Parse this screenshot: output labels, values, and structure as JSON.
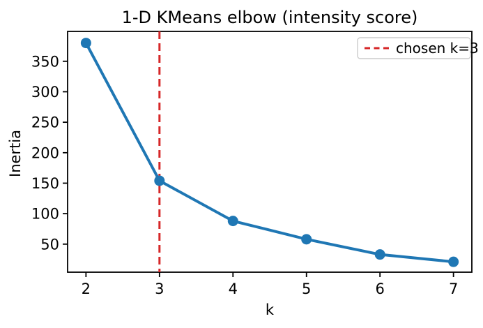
{
  "chart_data": {
    "type": "line",
    "title": "1-D KMeans elbow (intensity score)",
    "xlabel": "k",
    "ylabel": "Inertia",
    "x": [
      2,
      3,
      4,
      5,
      6,
      7
    ],
    "series": [
      {
        "name": "inertia",
        "values": [
          380,
          154,
          88,
          58,
          33,
          21
        ],
        "color": "#1f77b4",
        "marker": "circle",
        "line_width": 4,
        "marker_radius": 7.5
      }
    ],
    "xticks": [
      2,
      3,
      4,
      5,
      6,
      7
    ],
    "yticks": [
      50,
      100,
      150,
      200,
      250,
      300,
      350
    ],
    "xlim": [
      1.75,
      7.25
    ],
    "ylim": [
      4,
      399
    ],
    "grid": false,
    "vline": {
      "x": 3,
      "color": "#d62728",
      "style": "dashed",
      "width": 3
    },
    "legend": {
      "position": "upper right",
      "entries": [
        {
          "label": "chosen k=3",
          "color": "#d62728",
          "style": "dashed"
        }
      ]
    },
    "axis_color": "#000000",
    "background": "#ffffff"
  }
}
